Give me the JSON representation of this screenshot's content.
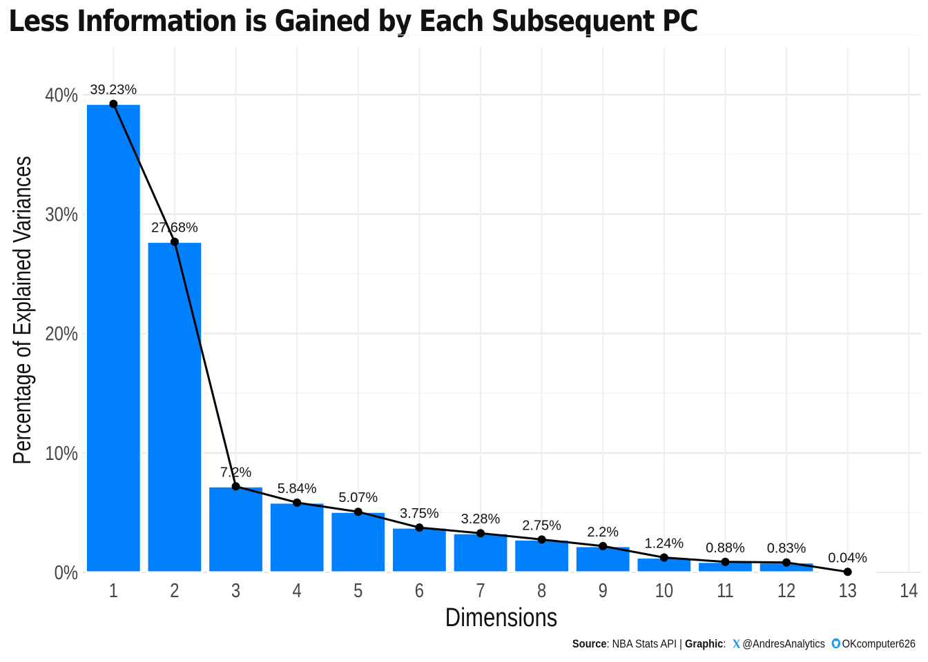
{
  "chart_data": {
    "type": "bar",
    "title": "Less Information is Gained by Each Subsequent PC",
    "xlabel": "Dimensions",
    "ylabel": "Percentage of Explained Variances",
    "categories": [
      "1",
      "2",
      "3",
      "4",
      "5",
      "6",
      "7",
      "8",
      "9",
      "10",
      "11",
      "12",
      "13"
    ],
    "x_ticks": [
      "1",
      "2",
      "3",
      "4",
      "5",
      "6",
      "7",
      "8",
      "9",
      "10",
      "11",
      "12",
      "13",
      "14"
    ],
    "values": [
      39.23,
      27.68,
      7.2,
      5.84,
      5.07,
      3.75,
      3.28,
      2.75,
      2.2,
      1.24,
      0.88,
      0.83,
      0.04
    ],
    "value_labels": [
      "39.23%",
      "27.68%",
      "7.2%",
      "5.84%",
      "5.07%",
      "3.75%",
      "3.28%",
      "2.75%",
      "2.2%",
      "1.24%",
      "0.88%",
      "0.83%",
      "0.04%"
    ],
    "y_ticks": [
      0,
      10,
      20,
      30,
      40
    ],
    "y_tick_labels": [
      "0%",
      "10%",
      "20%",
      "30%",
      "40%"
    ],
    "ylim": [
      0,
      44
    ],
    "xlim": [
      0.5,
      14.2
    ],
    "grid": true,
    "bar_color": "#0080ff",
    "line_color": "#000000",
    "overlay": "line-with-points"
  },
  "caption": {
    "source_label": "Source",
    "source_text": "NBA Stats API",
    "separator": "|",
    "graphic_label": "Graphic",
    "twitter_handle": "@AndresAnalytics",
    "github_handle": "OKcomputer626",
    "twitter_icon": "x-logo-icon",
    "github_icon": "github-icon",
    "icon_color": "#1d9bf0"
  }
}
